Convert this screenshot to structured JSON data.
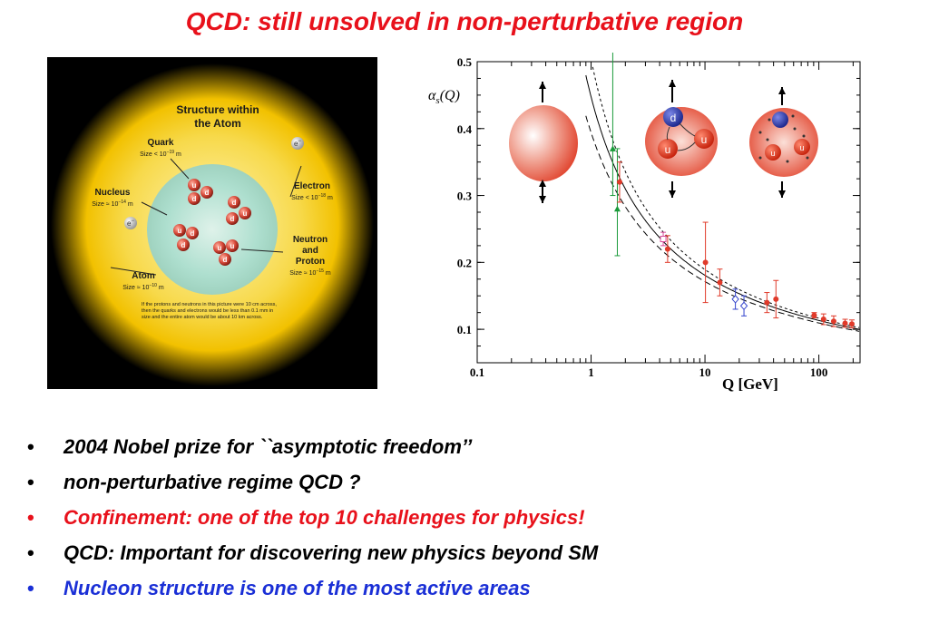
{
  "slide": {
    "title": "QCD: still unsolved in non-perturbative region"
  },
  "atom_figure": {
    "heading_line1": "Structure within",
    "heading_line2": "the Atom",
    "quark_label": "Quark",
    "quark_size_prefix": "Size < 10",
    "quark_size_exp": "−19",
    "quark_size_unit": " m",
    "nucleus_label": "Nucleus",
    "nucleus_size_prefix": "Size ≈ 10",
    "nucleus_size_exp": "−14",
    "nucleus_size_unit": " m",
    "electron_label": "Electron",
    "electron_size_prefix": "Size < 10",
    "electron_size_exp": "−18",
    "electron_size_unit": " m",
    "neutron_line1": "Neutron",
    "neutron_line2": "and",
    "neutron_line3": "Proton",
    "neutron_size_prefix": "Size ≈ 10",
    "neutron_size_exp": "−15",
    "neutron_size_unit": " m",
    "atom_label": "Atom",
    "atom_size_prefix": "Size ≈ 10",
    "atom_size_exp": "−10",
    "atom_size_unit": " m",
    "electron_symbol": "e",
    "electron_charge": "−",
    "quark_u": "u",
    "quark_d": "d",
    "footnote_line1": "If the protons and neutrons in this picture were 10 cm across,",
    "footnote_line2": "then the quarks and electrons would be less than 0.1 mm in",
    "footnote_line3": "size and the entire atom would be about 10 km across."
  },
  "chart_data": {
    "type": "scatter",
    "ylabel": "αs(Q)",
    "xlabel": "Q [GeV]",
    "x_scale": "log",
    "xlim": [
      0.1,
      230
    ],
    "ylim": [
      0.05,
      0.5
    ],
    "x_ticks": [
      "0.1",
      "1",
      "10",
      "100"
    ],
    "y_ticks": [
      "0.5",
      "0.4",
      "0.3",
      "0.2",
      "0.1"
    ],
    "series": [
      {
        "color": "#1a9a3a",
        "marker": "triangle",
        "points": [
          [
            1.55,
            0.37
          ],
          [
            1.7,
            0.28
          ]
        ],
        "err": [
          [
            0.3,
            0.07
          ],
          [
            0.09,
            0.07
          ]
        ]
      },
      {
        "color": "#e03a2a",
        "marker": "circle",
        "points": [
          [
            1.78,
            0.32
          ],
          [
            4.7,
            0.22
          ],
          [
            10.1,
            0.2
          ],
          [
            13.5,
            0.17
          ],
          [
            35,
            0.14
          ],
          [
            42,
            0.145
          ],
          [
            91,
            0.121
          ],
          [
            110,
            0.115
          ],
          [
            135,
            0.112
          ],
          [
            170,
            0.109
          ],
          [
            195,
            0.108
          ]
        ],
        "err": [
          [
            0.03,
            0.03
          ],
          [
            0.02,
            0.02
          ],
          [
            0.06,
            0.06
          ],
          [
            0.02,
            0.02
          ],
          [
            0.015,
            0.015
          ],
          [
            0.028,
            0.028
          ],
          [
            0.004,
            0.004
          ],
          [
            0.008,
            0.008
          ],
          [
            0.008,
            0.008
          ],
          [
            0.006,
            0.006
          ],
          [
            0.006,
            0.006
          ]
        ]
      },
      {
        "color": "#d94b9a",
        "marker": "square-open",
        "points": [
          [
            4.3,
            0.235
          ]
        ],
        "err": [
          [
            0.01,
            0.01
          ]
        ]
      },
      {
        "color": "#3344cc",
        "marker": "diamond-open",
        "points": [
          [
            18.5,
            0.145
          ],
          [
            22,
            0.135
          ]
        ],
        "err": [
          [
            0.015,
            0.015
          ],
          [
            0.015,
            0.015
          ]
        ]
      }
    ],
    "curves": [
      "solid",
      "dashed",
      "short-dashed"
    ],
    "grid": false,
    "legend": "none"
  },
  "bullets": [
    {
      "text": "2004 Nobel prize for ``asymptotic freedom’’",
      "color": "#000000"
    },
    {
      "text": "non-perturbative regime QCD ?",
      "color": "#000000"
    },
    {
      "text": "Confinement: one of the top 10 challenges for physics!",
      "color": "#e8111b"
    },
    {
      "text": "QCD: Important for discovering new physics beyond SM",
      "color": "#000000"
    },
    {
      "text": "Nucleon structure is one of  the most active areas",
      "color": "#1a2fd6"
    }
  ]
}
